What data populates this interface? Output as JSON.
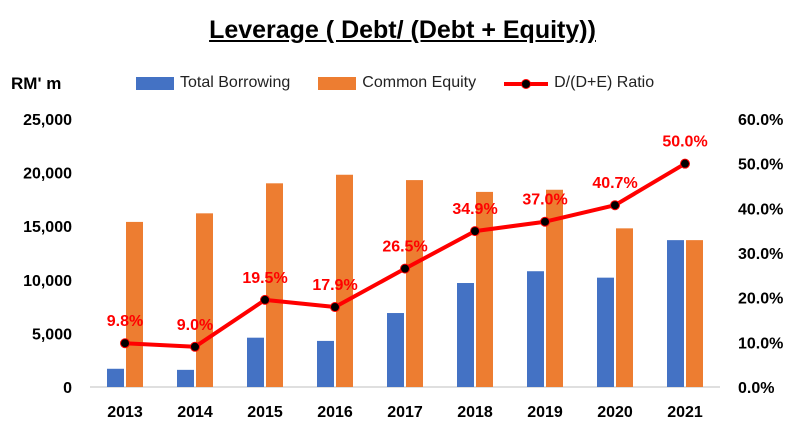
{
  "chart_data": {
    "type": "bar",
    "title": "Leverage ( Debt/ (Debt + Equity))",
    "y_unit_label": "RM' m",
    "categories": [
      "2013",
      "2014",
      "2015",
      "2016",
      "2017",
      "2018",
      "2019",
      "2020",
      "2021"
    ],
    "series": [
      {
        "name": "Total Borrowing",
        "type": "bar",
        "axis": "left",
        "color": "#4472C4",
        "values": [
          1700,
          1600,
          4600,
          4300,
          6900,
          9700,
          10800,
          10200,
          13700
        ]
      },
      {
        "name": "Common Equity",
        "type": "bar",
        "axis": "left",
        "color": "#ED7D31",
        "values": [
          15400,
          16200,
          19000,
          19800,
          19300,
          18200,
          18400,
          14800,
          13700
        ]
      },
      {
        "name": "D/(D+E) Ratio",
        "type": "line",
        "axis": "right",
        "color": "#FF0000",
        "marker_color": "#000000",
        "values": [
          9.8,
          9.0,
          19.5,
          17.9,
          26.5,
          34.9,
          37.0,
          40.7,
          50.0
        ],
        "labels": [
          "9.8%",
          "9.0%",
          "19.5%",
          "17.9%",
          "26.5%",
          "34.9%",
          "37.0%",
          "40.7%",
          "50.0%"
        ]
      }
    ],
    "ylim_left": [
      0,
      25000
    ],
    "ylim_right": [
      0,
      60
    ],
    "left_ticks": [
      "0",
      "5,000",
      "10,000",
      "15,000",
      "20,000",
      "25,000"
    ],
    "right_ticks": [
      "0.0%",
      "10.0%",
      "20.0%",
      "30.0%",
      "40.0%",
      "50.0%",
      "60.0%"
    ],
    "grid": false,
    "legend_position": "top"
  }
}
